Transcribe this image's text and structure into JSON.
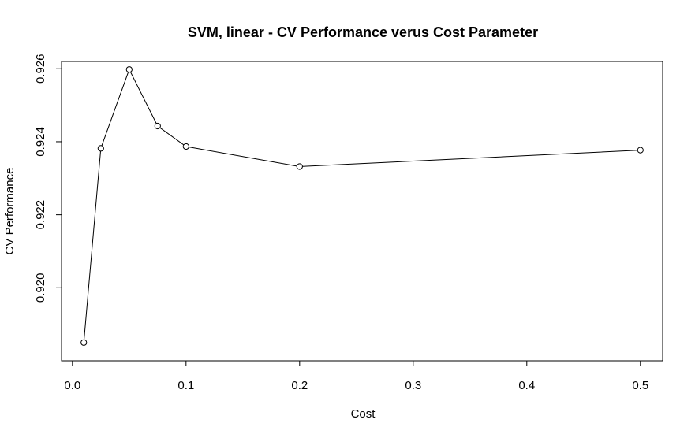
{
  "chart_data": {
    "type": "line",
    "title": "SVM, linear - CV Performance verus Cost Parameter",
    "xlabel": "Cost",
    "ylabel": "CV Performance",
    "x": [
      0.01,
      0.025,
      0.05,
      0.075,
      0.1,
      0.2,
      0.5
    ],
    "series": [
      {
        "values": [
          0.9185,
          0.92382,
          0.92598,
          0.92443,
          0.92387,
          0.92332,
          0.92377
        ]
      }
    ],
    "xlim": [
      -0.0096,
      0.5196
    ],
    "ylim": [
      0.918,
      0.9262
    ],
    "xticks": [
      0.0,
      0.1,
      0.2,
      0.3,
      0.4,
      0.5
    ],
    "xtick_labels": [
      "0.0",
      "0.1",
      "0.2",
      "0.3",
      "0.4",
      "0.5"
    ],
    "yticks": [
      0.92,
      0.922,
      0.924,
      0.926
    ],
    "ytick_labels": [
      "0.920",
      "0.922",
      "0.924",
      "0.926"
    ],
    "grid": false,
    "markers": "open-circle",
    "line_color": "#000000"
  }
}
